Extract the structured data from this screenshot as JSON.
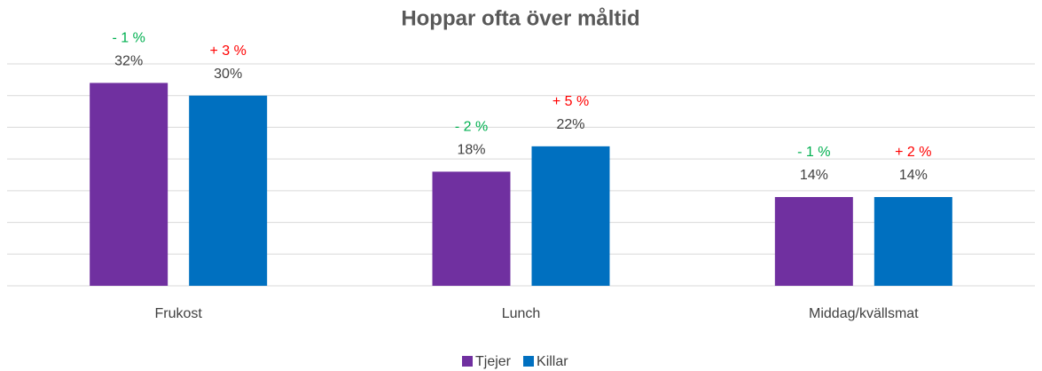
{
  "chart_data": {
    "type": "bar",
    "title": "Hoppar ofta över måltid",
    "categories": [
      "Frukost",
      "Lunch",
      "Middag/kvällsmat"
    ],
    "series": [
      {
        "name": "Tjejer",
        "color": "#7030a0",
        "values": [
          32,
          18,
          14
        ],
        "value_labels": [
          "32%",
          "18%",
          "14%"
        ],
        "change_labels": [
          "- 1 %",
          "- 2 %",
          "- 1 %"
        ],
        "change_color": "#00b050"
      },
      {
        "name": "Killar",
        "color": "#0070c0",
        "values": [
          30,
          22,
          14
        ],
        "value_labels": [
          "30%",
          "22%",
          "14%"
        ],
        "change_labels": [
          "+ 3 %",
          "+ 5 %",
          "+ 2 %"
        ],
        "change_color": "#ff0000"
      }
    ],
    "ylim": [
      0,
      35
    ],
    "yticks": [
      0,
      5,
      10,
      15,
      20,
      25,
      30,
      35
    ],
    "grid": true,
    "legend": "bottom"
  }
}
